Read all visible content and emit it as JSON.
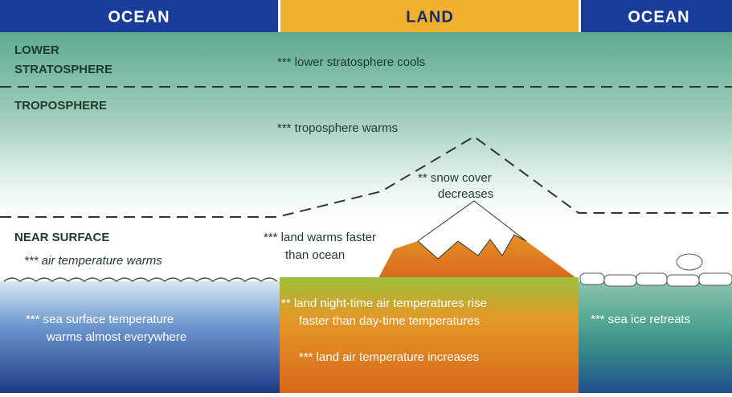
{
  "header": {
    "left": "OCEAN",
    "center": "LAND",
    "right": "OCEAN"
  },
  "layers": {
    "lower_stratosphere": {
      "label": [
        "LOWER",
        "STRATOSPHERE"
      ],
      "note": "*** lower stratosphere cools"
    },
    "troposphere": {
      "label": "TROPOSPHERE",
      "note": "*** troposphere warms"
    },
    "near_surface": {
      "label": "NEAR SURFACE",
      "note": "*** air temperature warms"
    }
  },
  "annotations": {
    "snow": [
      "** snow cover",
      "decreases"
    ],
    "land_warms": [
      "*** land warms faster",
      "than ocean"
    ],
    "sea_surface": [
      "*** sea surface temperature",
      "warms almost everywhere"
    ],
    "land_night": [
      "** land night-time air temperatures rise",
      "faster than day-time temperatures"
    ],
    "land_air": "*** land air temperature increases",
    "sea_ice": "*** sea ice retreats"
  }
}
